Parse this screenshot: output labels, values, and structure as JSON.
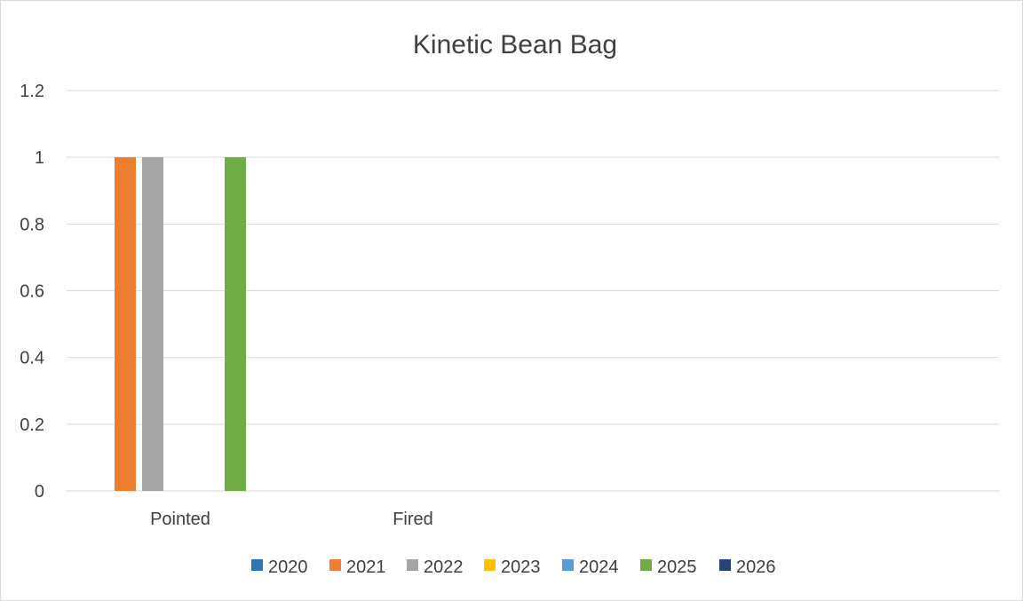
{
  "chart_data": {
    "type": "bar",
    "title": "Kinetic Bean Bag",
    "categories": [
      "Pointed",
      "Fired"
    ],
    "series": [
      {
        "name": "2020",
        "color": "#2e75b6",
        "values": [
          0,
          0
        ]
      },
      {
        "name": "2021",
        "color": "#ed7d31",
        "values": [
          1,
          0
        ]
      },
      {
        "name": "2022",
        "color": "#a5a5a5",
        "values": [
          1,
          0
        ]
      },
      {
        "name": "2023",
        "color": "#ffc000",
        "values": [
          0,
          0
        ]
      },
      {
        "name": "2024",
        "color": "#5b9bd5",
        "values": [
          0,
          0
        ]
      },
      {
        "name": "2025",
        "color": "#70ad47",
        "values": [
          1,
          0
        ]
      },
      {
        "name": "2026",
        "color": "#264478",
        "values": [
          0,
          0
        ]
      }
    ],
    "ylim": [
      0,
      1.2
    ],
    "yticks": [
      "0",
      "0.2",
      "0.4",
      "0.6",
      "0.8",
      "1",
      "1.2"
    ],
    "grid": true,
    "legend_position": "bottom"
  }
}
